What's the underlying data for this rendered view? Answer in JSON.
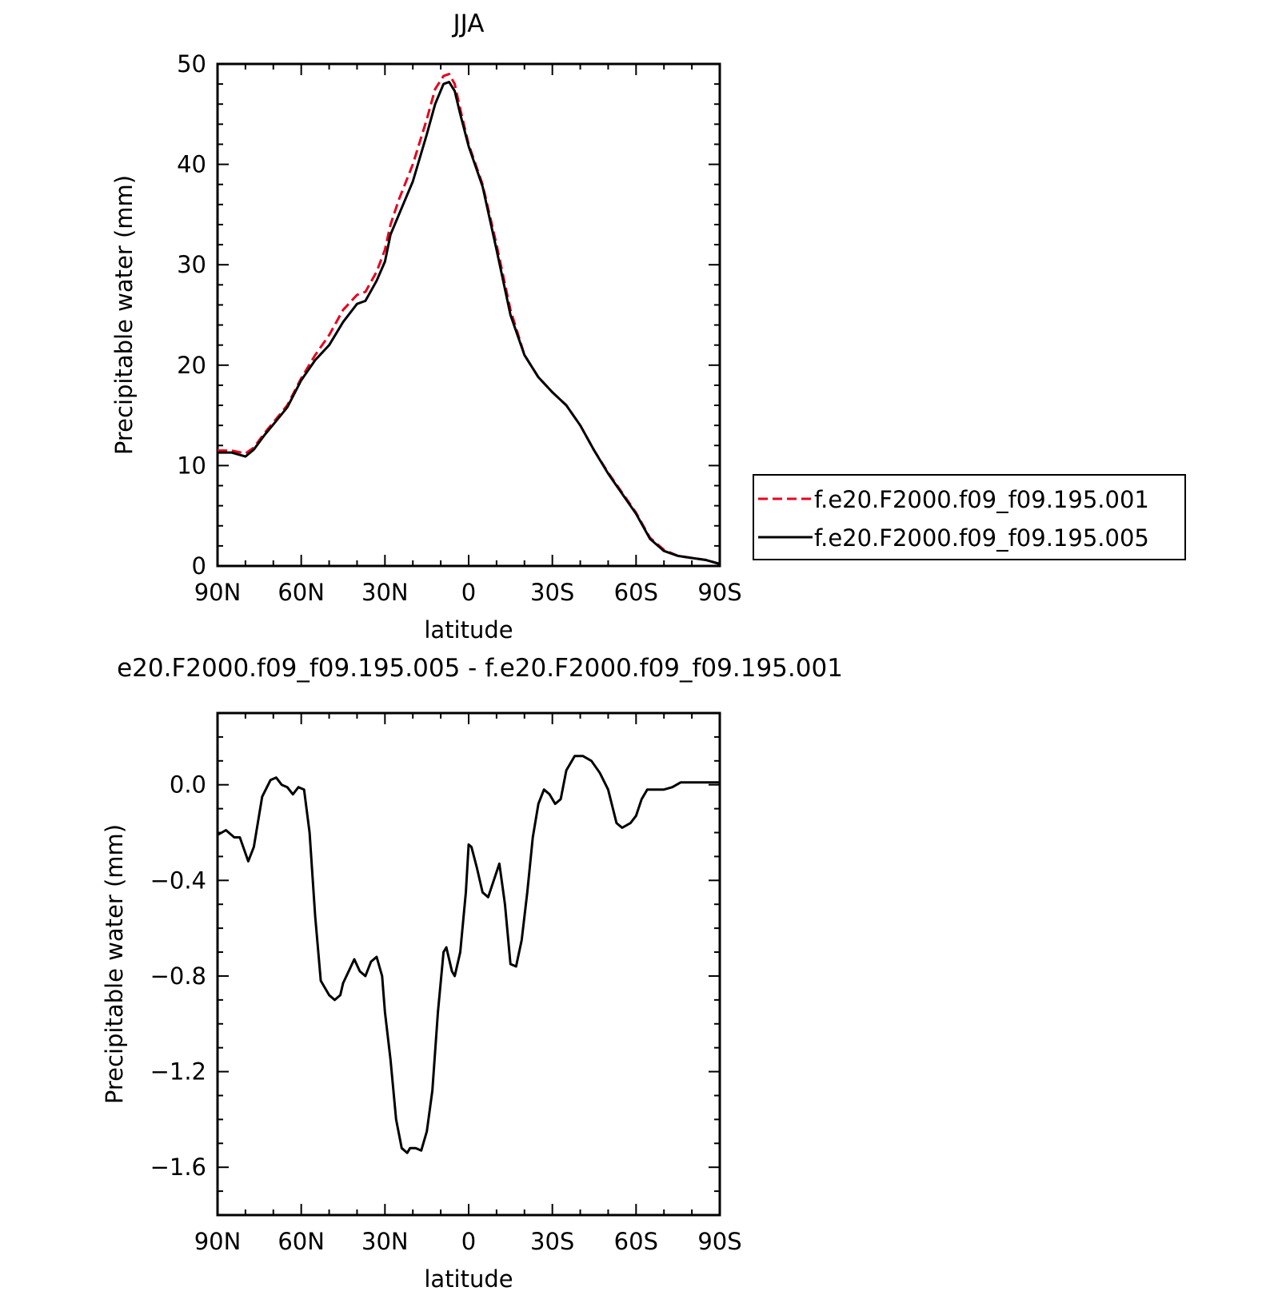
{
  "chart_data": [
    {
      "type": "line",
      "title": "JJA",
      "xlabel": "latitude",
      "ylabel": "Precipitable water (mm)",
      "xlim": [
        90,
        -90
      ],
      "ylim": [
        0,
        50
      ],
      "xticks": [
        90,
        60,
        30,
        0,
        -30,
        -60,
        -90
      ],
      "xtick_labels": [
        "90N",
        "60N",
        "30N",
        "0",
        "30S",
        "60S",
        "90S"
      ],
      "yticks": [
        0,
        10,
        20,
        30,
        40,
        50
      ],
      "ytick_labels": [
        "0",
        "10",
        "20",
        "30",
        "40",
        "50"
      ],
      "grid": false,
      "legend_position": "right",
      "series": [
        {
          "name": "f.e20.F2000.f09_f09.195.001",
          "color": "#e8001c",
          "dash": "dashed",
          "x": [
            90,
            85,
            80,
            77,
            73,
            70,
            65,
            60,
            55,
            50,
            45,
            40,
            37,
            33,
            30,
            28,
            25,
            20,
            15,
            12,
            9,
            7,
            5,
            3,
            0,
            -5,
            -10,
            -15,
            -20,
            -25,
            -30,
            -35,
            -40,
            -45,
            -50,
            -55,
            -60,
            -65,
            -70,
            -75,
            -80,
            -85,
            -90
          ],
          "y": [
            11.5,
            11.5,
            11.2,
            11.8,
            13.3,
            14.3,
            16.0,
            18.7,
            21.0,
            23.0,
            25.5,
            27.0,
            27.3,
            29.3,
            31.5,
            34.0,
            36.5,
            40.0,
            44.5,
            47.5,
            48.8,
            49.0,
            48.0,
            45.5,
            42.0,
            38.0,
            32.0,
            25.5,
            21.0,
            18.8,
            17.3,
            16.0,
            14.0,
            11.5,
            9.3,
            7.3,
            5.3,
            2.8,
            1.6,
            1.0,
            0.8,
            0.6,
            0.2
          ]
        },
        {
          "name": "f.e20.F2000.f09_f09.195.005",
          "color": "#000000",
          "dash": "solid",
          "x": [
            90,
            85,
            80,
            77,
            73,
            70,
            65,
            60,
            55,
            50,
            45,
            40,
            37,
            33,
            30,
            28,
            25,
            20,
            15,
            12,
            9,
            7,
            5,
            3,
            0,
            -5,
            -10,
            -15,
            -20,
            -25,
            -30,
            -35,
            -40,
            -45,
            -50,
            -55,
            -60,
            -65,
            -70,
            -75,
            -80,
            -85,
            -90
          ],
          "y": [
            11.3,
            11.3,
            10.9,
            11.6,
            13.1,
            14.1,
            15.8,
            18.5,
            20.5,
            22.0,
            24.3,
            26.1,
            26.4,
            28.4,
            30.3,
            33.0,
            35.0,
            38.3,
            43.0,
            46.0,
            48.0,
            48.2,
            47.3,
            45.0,
            41.8,
            37.8,
            31.5,
            25.0,
            21.0,
            18.8,
            17.3,
            16.0,
            14.0,
            11.5,
            9.2,
            7.2,
            5.2,
            2.7,
            1.5,
            1.0,
            0.8,
            0.6,
            0.2
          ]
        }
      ]
    },
    {
      "type": "line",
      "title": "e20.F2000.f09_f09.195.005 - f.e20.F2000.f09_f09.195.001",
      "xlabel": "latitude",
      "ylabel": "Precipitable water (mm)",
      "xlim": [
        90,
        -90
      ],
      "ylim": [
        -1.8,
        0.3
      ],
      "xticks": [
        90,
        60,
        30,
        0,
        -30,
        -60,
        -90
      ],
      "xtick_labels": [
        "90N",
        "60N",
        "30N",
        "0",
        "30S",
        "60S",
        "90S"
      ],
      "yticks": [
        0.0,
        -0.4,
        -0.8,
        -1.2,
        -1.6
      ],
      "ytick_labels": [
        "0.0",
        "−0.4",
        "−0.8",
        "−1.2",
        "−1.6"
      ],
      "grid": false,
      "series": [
        {
          "color": "#000000",
          "dash": "solid",
          "x": [
            90,
            87,
            86,
            84,
            82,
            79,
            77,
            74,
            71,
            69,
            67,
            65,
            63,
            61,
            59,
            57,
            55,
            53,
            50,
            48,
            46,
            45,
            43,
            41,
            39,
            37,
            35,
            33,
            31,
            30,
            28,
            26,
            24,
            22,
            21,
            19,
            17,
            15,
            13,
            11,
            9,
            8,
            6,
            5,
            3,
            1,
            0,
            -1,
            -3,
            -5,
            -7,
            -9,
            -11,
            -13,
            -15,
            -17,
            -19,
            -21,
            -23,
            -25,
            -27,
            -29,
            -31,
            -33,
            -35,
            -38,
            -41,
            -44,
            -47,
            -50,
            -53,
            -55,
            -58,
            -60,
            -62,
            -64,
            -67,
            -70,
            -73,
            -76,
            -79,
            -82,
            -85,
            -88,
            -90
          ],
          "y": [
            -0.21,
            -0.19,
            -0.2,
            -0.22,
            -0.22,
            -0.32,
            -0.26,
            -0.05,
            0.02,
            0.03,
            0.0,
            -0.01,
            -0.04,
            -0.01,
            -0.02,
            -0.2,
            -0.55,
            -0.82,
            -0.88,
            -0.9,
            -0.88,
            -0.83,
            -0.78,
            -0.73,
            -0.78,
            -0.8,
            -0.74,
            -0.72,
            -0.8,
            -0.95,
            -1.15,
            -1.4,
            -1.52,
            -1.54,
            -1.52,
            -1.52,
            -1.53,
            -1.45,
            -1.28,
            -0.95,
            -0.7,
            -0.68,
            -0.78,
            -0.8,
            -0.7,
            -0.45,
            -0.25,
            -0.26,
            -0.35,
            -0.45,
            -0.47,
            -0.4,
            -0.33,
            -0.5,
            -0.75,
            -0.76,
            -0.65,
            -0.45,
            -0.22,
            -0.08,
            -0.02,
            -0.04,
            -0.08,
            -0.06,
            0.06,
            0.12,
            0.12,
            0.1,
            0.05,
            -0.02,
            -0.16,
            -0.18,
            -0.16,
            -0.13,
            -0.06,
            -0.02,
            -0.02,
            -0.02,
            -0.01,
            0.01,
            0.01,
            0.01,
            0.01,
            0.01,
            0.01
          ]
        }
      ]
    }
  ]
}
